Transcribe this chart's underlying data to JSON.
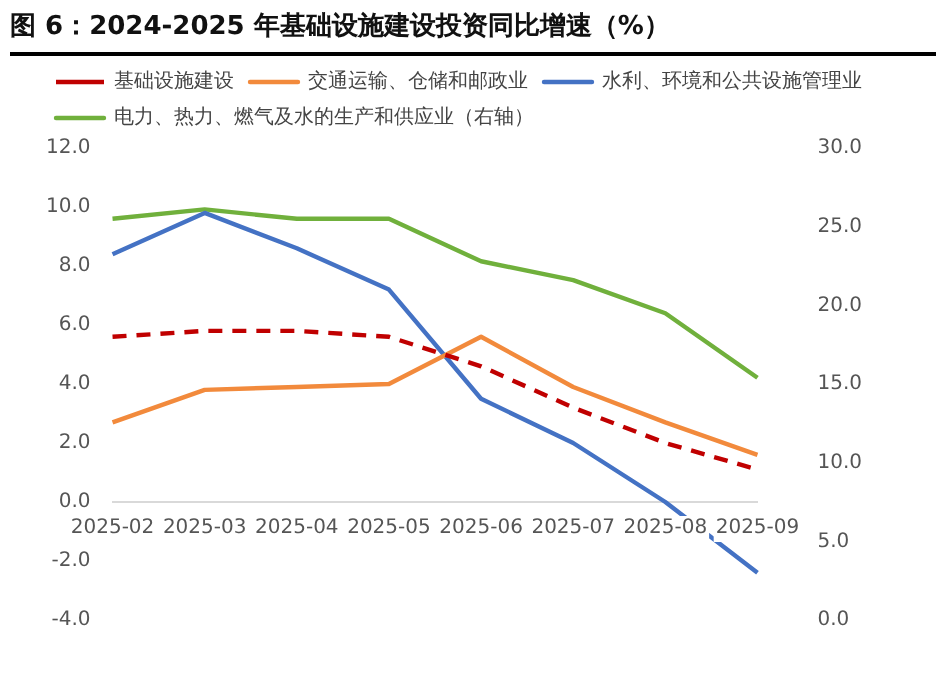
{
  "chart_data": {
    "type": "line",
    "title": "图 6：2024-2025 年基础设施建设投资同比增速（%）",
    "categories": [
      "2025-02",
      "2025-03",
      "2025-04",
      "2025-05",
      "2025-06",
      "2025-07",
      "2025-08",
      "2025-09"
    ],
    "series": [
      {
        "name": "基础设施建设",
        "color": "#c00000",
        "line_style": "dashed",
        "values": [
          5.6,
          5.8,
          5.8,
          5.6,
          4.6,
          3.2,
          2.0,
          1.1
        ]
      },
      {
        "name": "交通运输、仓储和邮政业",
        "color": "#f28a3c",
        "values": [
          2.7,
          3.8,
          3.9,
          4.0,
          5.6,
          3.9,
          2.7,
          1.6
        ]
      },
      {
        "name": "水利、环境和公共设施管理业",
        "color": "#4472c4",
        "values": [
          8.4,
          9.8,
          8.6,
          7.2,
          3.5,
          2.0,
          0.0,
          -2.4
        ]
      },
      {
        "name": "电力、热力、燃气及水的生产和供应业（右轴）",
        "color": "#70b03c",
        "axis": "y2",
        "values": [
          25.5,
          26.1,
          25.5,
          25.5,
          22.8,
          21.6,
          19.5,
          15.4
        ]
      }
    ],
    "ylim": [
      -4,
      12
    ],
    "yticks": [
      {
        "value": -4,
        "label": "-4.0"
      },
      {
        "value": -2,
        "label": "-2.0"
      },
      {
        "value": 0,
        "label": "0.0"
      },
      {
        "value": 2,
        "label": "2.0"
      },
      {
        "value": 4,
        "label": "4.0"
      },
      {
        "value": 6,
        "label": "6.0"
      },
      {
        "value": 8,
        "label": "8.0"
      },
      {
        "value": 10,
        "label": "10.0"
      },
      {
        "value": 12,
        "label": "12.0"
      }
    ],
    "y2lim": [
      0,
      30
    ],
    "y2ticks": [
      {
        "value": 0,
        "label": "0.0"
      },
      {
        "value": 5,
        "label": "5.0"
      },
      {
        "value": 10,
        "label": "10.0"
      },
      {
        "value": 15,
        "label": "15.0"
      },
      {
        "value": 20,
        "label": "20.0"
      },
      {
        "value": 25,
        "label": "25.0"
      },
      {
        "value": 30,
        "label": "30.0"
      }
    ],
    "grid": false,
    "legend": "top",
    "marker": "none",
    "line_style": "solid"
  }
}
